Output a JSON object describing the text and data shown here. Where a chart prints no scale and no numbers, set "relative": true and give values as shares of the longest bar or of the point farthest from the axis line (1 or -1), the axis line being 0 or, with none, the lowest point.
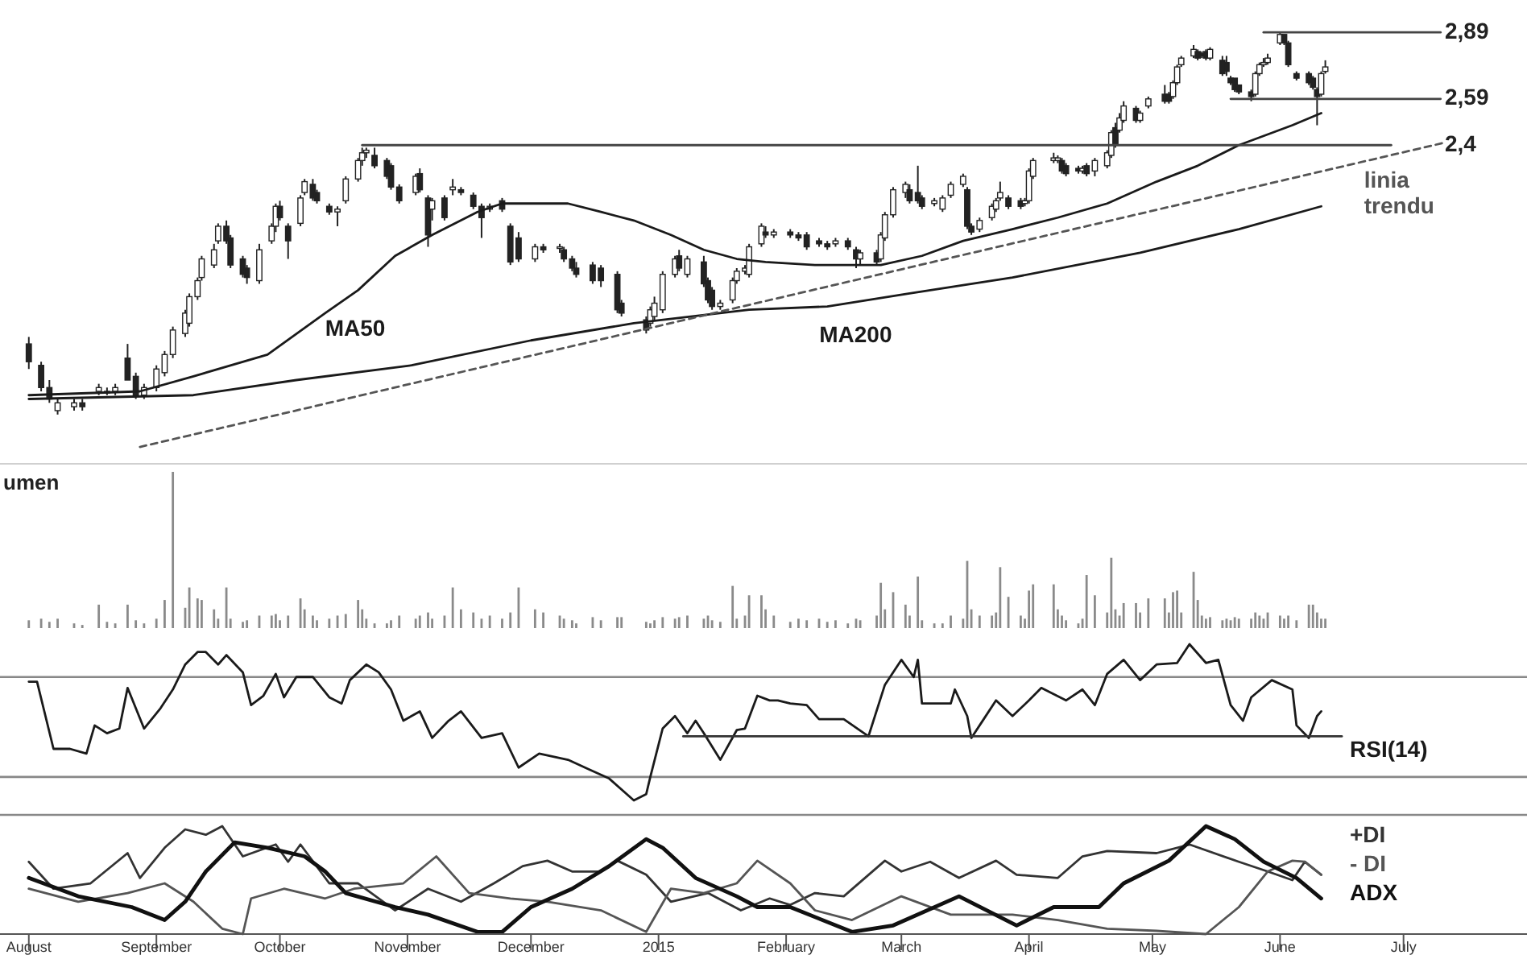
{
  "chart_data": [
    {
      "type": "candlestick",
      "log": true,
      "ylim": [
        1.42,
        3.0
      ],
      "xlim": [
        "2014-07-25",
        "2015-07-31"
      ],
      "yticks": [
        {
          "value": 2.89,
          "label": "2,89"
        },
        {
          "value": 2.59,
          "label": "2,59"
        },
        {
          "value": 2.4,
          "label": "2,4"
        }
      ],
      "tick_labels": "y",
      "x": [
        "2014-08-01",
        "2014-08-04",
        "2014-08-06",
        "2014-08-08",
        "2014-08-12",
        "2014-08-14",
        "2014-08-18",
        "2014-08-20",
        "2014-08-22",
        "2014-08-25",
        "2014-08-27",
        "2014-08-29",
        "2014-09-01",
        "2014-09-03",
        "2014-09-05",
        "2014-09-08",
        "2014-09-09",
        "2014-09-11",
        "2014-09-12",
        "2014-09-15",
        "2014-09-16",
        "2014-09-18",
        "2014-09-19",
        "2014-09-22",
        "2014-09-23",
        "2014-09-26",
        "2014-09-29",
        "2014-09-30",
        "2014-10-01",
        "2014-10-03",
        "2014-10-06",
        "2014-10-07",
        "2014-10-09",
        "2014-10-10",
        "2014-10-13",
        "2014-10-15",
        "2014-10-17",
        "2014-10-20",
        "2014-10-21",
        "2014-10-22",
        "2014-10-24",
        "2014-10-27",
        "2014-10-28",
        "2014-10-30",
        "2014-11-03",
        "2014-11-04",
        "2014-11-06",
        "2014-11-07",
        "2014-11-10",
        "2014-11-12",
        "2014-11-14",
        "2014-11-17",
        "2014-11-19",
        "2014-11-21",
        "2014-11-24",
        "2014-11-26",
        "2014-11-28",
        "2014-12-02",
        "2014-12-04",
        "2014-12-08",
        "2014-12-09",
        "2014-12-11",
        "2014-12-12",
        "2014-12-16",
        "2014-12-18",
        "2014-12-22",
        "2014-12-23",
        "2014-12-29",
        "2014-12-30",
        "2014-12-31",
        "2015-01-02",
        "2015-01-05",
        "2015-01-06",
        "2015-01-08",
        "2015-01-12",
        "2015-01-13",
        "2015-01-14",
        "2015-01-16",
        "2015-01-19",
        "2015-01-20",
        "2015-01-22",
        "2015-01-23",
        "2015-01-26",
        "2015-01-27",
        "2015-01-29",
        "2015-02-02",
        "2015-02-04",
        "2015-02-06",
        "2015-02-09",
        "2015-02-11",
        "2015-02-13",
        "2015-02-16",
        "2015-02-18",
        "2015-02-19",
        "2015-02-23",
        "2015-02-24",
        "2015-02-25",
        "2015-02-27",
        "2015-03-02",
        "2015-03-03",
        "2015-03-05",
        "2015-03-06",
        "2015-03-09",
        "2015-03-11",
        "2015-03-13",
        "2015-03-16",
        "2015-03-17",
        "2015-03-18",
        "2015-03-20",
        "2015-03-23",
        "2015-03-24",
        "2015-03-25",
        "2015-03-27",
        "2015-03-30",
        "2015-03-31",
        "2015-04-01",
        "2015-04-02",
        "2015-04-07",
        "2015-04-08",
        "2015-04-09",
        "2015-04-10",
        "2015-04-13",
        "2015-04-14",
        "2015-04-15",
        "2015-04-17",
        "2015-04-20",
        "2015-04-21",
        "2015-04-22",
        "2015-04-23",
        "2015-04-24",
        "2015-04-27",
        "2015-04-28",
        "2015-04-30",
        "2015-05-04",
        "2015-05-05",
        "2015-05-06",
        "2015-05-07",
        "2015-05-08",
        "2015-05-11",
        "2015-05-12",
        "2015-05-13",
        "2015-05-14",
        "2015-05-15",
        "2015-05-18",
        "2015-05-19",
        "2015-05-20",
        "2015-05-21",
        "2015-05-22",
        "2015-05-25",
        "2015-05-26",
        "2015-05-27",
        "2015-05-28",
        "2015-05-29",
        "2015-06-01",
        "2015-06-02",
        "2015-06-03",
        "2015-06-05",
        "2015-06-08",
        "2015-06-09",
        "2015-06-10",
        "2015-06-11",
        "2015-06-12"
      ],
      "ohlc": [
        [
          1.73,
          1.75,
          1.66,
          1.68
        ],
        [
          1.67,
          1.68,
          1.6,
          1.61
        ],
        [
          1.61,
          1.63,
          1.57,
          1.58
        ],
        [
          1.55,
          1.58,
          1.54,
          1.57
        ],
        [
          1.56,
          1.58,
          1.55,
          1.57
        ],
        [
          1.57,
          1.58,
          1.55,
          1.56
        ],
        [
          1.6,
          1.62,
          1.59,
          1.61
        ],
        [
          1.6,
          1.61,
          1.59,
          1.6
        ],
        [
          1.6,
          1.62,
          1.59,
          1.61
        ],
        [
          1.69,
          1.73,
          1.63,
          1.63
        ],
        [
          1.64,
          1.65,
          1.58,
          1.59
        ],
        [
          1.59,
          1.62,
          1.58,
          1.61
        ],
        [
          1.61,
          1.67,
          1.6,
          1.66
        ],
        [
          1.65,
          1.71,
          1.64,
          1.7
        ],
        [
          1.7,
          1.78,
          1.69,
          1.77
        ],
        [
          1.76,
          1.83,
          1.75,
          1.82
        ],
        [
          1.79,
          1.88,
          1.78,
          1.87
        ],
        [
          1.87,
          1.93,
          1.86,
          1.92
        ],
        [
          1.93,
          2.0,
          1.92,
          1.99
        ],
        [
          1.97,
          2.04,
          1.96,
          2.02
        ],
        [
          2.05,
          2.11,
          2.04,
          2.1
        ],
        [
          2.1,
          2.12,
          2.04,
          2.05
        ],
        [
          2.06,
          2.07,
          1.96,
          1.97
        ],
        [
          1.99,
          2.0,
          1.93,
          1.94
        ],
        [
          1.96,
          1.97,
          1.91,
          1.93
        ],
        [
          1.92,
          2.04,
          1.91,
          2.02
        ],
        [
          2.05,
          2.11,
          2.04,
          2.1
        ],
        [
          2.1,
          2.18,
          2.08,
          2.17
        ],
        [
          2.17,
          2.19,
          2.12,
          2.13
        ],
        [
          2.1,
          2.11,
          1.99,
          2.05
        ],
        [
          2.11,
          2.21,
          2.1,
          2.2
        ],
        [
          2.22,
          2.27,
          2.21,
          2.26
        ],
        [
          2.25,
          2.27,
          2.19,
          2.2
        ],
        [
          2.22,
          2.23,
          2.18,
          2.19
        ],
        [
          2.17,
          2.18,
          2.14,
          2.15
        ],
        [
          2.15,
          2.17,
          2.1,
          2.16
        ],
        [
          2.19,
          2.28,
          2.18,
          2.27
        ],
        [
          2.27,
          2.35,
          2.26,
          2.34
        ],
        [
          2.34,
          2.39,
          2.32,
          2.37
        ],
        [
          2.37,
          2.39,
          2.35,
          2.38
        ],
        [
          2.36,
          2.39,
          2.31,
          2.32
        ],
        [
          2.34,
          2.35,
          2.27,
          2.28
        ],
        [
          2.32,
          2.33,
          2.23,
          2.24
        ],
        [
          2.24,
          2.25,
          2.18,
          2.19
        ],
        [
          2.22,
          2.29,
          2.21,
          2.28
        ],
        [
          2.29,
          2.31,
          2.22,
          2.23
        ],
        [
          2.2,
          2.21,
          2.03,
          2.07
        ],
        [
          2.16,
          2.2,
          2.12,
          2.19
        ],
        [
          2.2,
          2.21,
          2.12,
          2.13
        ],
        [
          2.23,
          2.27,
          2.21,
          2.24
        ],
        [
          2.23,
          2.24,
          2.21,
          2.22
        ],
        [
          2.21,
          2.22,
          2.16,
          2.17
        ],
        [
          2.17,
          2.18,
          2.06,
          2.13
        ],
        [
          2.16,
          2.18,
          2.15,
          2.17
        ],
        [
          2.19,
          2.2,
          2.15,
          2.16
        ],
        [
          2.1,
          2.11,
          1.97,
          1.98
        ],
        [
          2.06,
          2.08,
          1.98,
          1.99
        ],
        [
          1.99,
          2.04,
          1.98,
          2.03
        ],
        [
          2.03,
          2.04,
          2.01,
          2.02
        ],
        [
          2.03,
          2.04,
          2.01,
          2.03
        ],
        [
          2.02,
          2.03,
          1.98,
          1.99
        ],
        [
          1.99,
          2.0,
          1.95,
          1.96
        ],
        [
          1.96,
          1.98,
          1.93,
          1.94
        ],
        [
          1.97,
          1.98,
          1.91,
          1.92
        ],
        [
          1.96,
          1.97,
          1.9,
          1.92
        ],
        [
          1.94,
          1.95,
          1.82,
          1.83
        ],
        [
          1.85,
          1.86,
          1.81,
          1.82
        ],
        [
          1.8,
          1.81,
          1.76,
          1.77
        ],
        [
          1.79,
          1.84,
          1.78,
          1.83
        ],
        [
          1.81,
          1.87,
          1.8,
          1.85
        ],
        [
          1.83,
          1.95,
          1.82,
          1.94
        ],
        [
          1.94,
          2.0,
          1.93,
          1.99
        ],
        [
          2.0,
          2.02,
          1.95,
          1.96
        ],
        [
          1.94,
          2.0,
          1.93,
          1.99
        ],
        [
          1.98,
          2.0,
          1.9,
          1.91
        ],
        [
          1.92,
          1.93,
          1.85,
          1.86
        ],
        [
          1.89,
          1.9,
          1.83,
          1.84
        ],
        [
          1.84,
          1.86,
          1.83,
          1.85
        ],
        [
          1.86,
          1.93,
          1.85,
          1.92
        ],
        [
          1.92,
          1.96,
          1.91,
          1.95
        ],
        [
          1.95,
          1.97,
          1.94,
          1.96
        ],
        [
          1.94,
          2.04,
          1.93,
          2.03
        ],
        [
          2.04,
          2.11,
          2.03,
          2.1
        ],
        [
          2.08,
          2.1,
          2.06,
          2.07
        ],
        [
          2.07,
          2.09,
          2.06,
          2.08
        ],
        [
          2.08,
          2.09,
          2.06,
          2.07
        ],
        [
          2.07,
          2.08,
          2.05,
          2.06
        ],
        [
          2.07,
          2.08,
          2.02,
          2.03
        ],
        [
          2.05,
          2.06,
          2.03,
          2.04
        ],
        [
          2.04,
          2.05,
          2.02,
          2.03
        ],
        [
          2.04,
          2.06,
          2.03,
          2.05
        ],
        [
          2.05,
          2.06,
          2.02,
          2.03
        ],
        [
          2.02,
          2.03,
          1.96,
          1.99
        ],
        [
          1.99,
          2.02,
          1.97,
          2.01
        ],
        [
          2.01,
          2.02,
          1.97,
          1.98
        ],
        [
          1.99,
          2.08,
          1.98,
          2.07
        ],
        [
          2.06,
          2.15,
          2.05,
          2.14
        ],
        [
          2.14,
          2.24,
          2.13,
          2.23
        ],
        [
          2.22,
          2.26,
          2.2,
          2.25
        ],
        [
          2.23,
          2.25,
          2.18,
          2.19
        ],
        [
          2.22,
          2.32,
          2.18,
          2.19
        ],
        [
          2.2,
          2.21,
          2.16,
          2.17
        ],
        [
          2.18,
          2.2,
          2.17,
          2.19
        ],
        [
          2.16,
          2.21,
          2.15,
          2.2
        ],
        [
          2.21,
          2.26,
          2.2,
          2.25
        ],
        [
          2.25,
          2.29,
          2.24,
          2.28
        ],
        [
          2.23,
          2.24,
          2.09,
          2.1
        ],
        [
          2.1,
          2.11,
          2.07,
          2.08
        ],
        [
          2.09,
          2.13,
          2.08,
          2.12
        ],
        [
          2.13,
          2.18,
          2.12,
          2.17
        ],
        [
          2.16,
          2.2,
          2.15,
          2.19
        ],
        [
          2.2,
          2.26,
          2.19,
          2.22
        ],
        [
          2.2,
          2.21,
          2.16,
          2.17
        ],
        [
          2.19,
          2.2,
          2.16,
          2.17
        ],
        [
          2.18,
          2.2,
          2.17,
          2.19
        ],
        [
          2.19,
          2.31,
          2.18,
          2.3
        ],
        [
          2.28,
          2.35,
          2.27,
          2.34
        ],
        [
          2.34,
          2.37,
          2.33,
          2.35
        ],
        [
          2.34,
          2.36,
          2.33,
          2.35
        ],
        [
          2.34,
          2.35,
          2.29,
          2.3
        ],
        [
          2.32,
          2.33,
          2.28,
          2.29
        ],
        [
          2.31,
          2.32,
          2.29,
          2.3
        ],
        [
          2.3,
          2.32,
          2.29,
          2.31
        ],
        [
          2.32,
          2.33,
          2.28,
          2.29
        ],
        [
          2.3,
          2.35,
          2.28,
          2.34
        ],
        [
          2.32,
          2.38,
          2.31,
          2.37
        ],
        [
          2.36,
          2.46,
          2.35,
          2.45
        ],
        [
          2.47,
          2.49,
          2.39,
          2.4
        ],
        [
          2.46,
          2.53,
          2.45,
          2.51
        ],
        [
          2.5,
          2.58,
          2.49,
          2.56
        ],
        [
          2.55,
          2.56,
          2.49,
          2.5
        ],
        [
          2.5,
          2.54,
          2.49,
          2.53
        ],
        [
          2.56,
          2.6,
          2.55,
          2.59
        ],
        [
          2.61,
          2.65,
          2.57,
          2.58
        ],
        [
          2.61,
          2.62,
          2.57,
          2.58
        ],
        [
          2.6,
          2.67,
          2.59,
          2.66
        ],
        [
          2.66,
          2.74,
          2.65,
          2.73
        ],
        [
          2.74,
          2.78,
          2.73,
          2.77
        ],
        [
          2.78,
          2.83,
          2.77,
          2.81
        ],
        [
          2.8,
          2.81,
          2.76,
          2.77
        ],
        [
          2.79,
          2.8,
          2.77,
          2.78
        ],
        [
          2.8,
          2.81,
          2.76,
          2.77
        ],
        [
          2.77,
          2.82,
          2.76,
          2.81
        ],
        [
          2.76,
          2.78,
          2.69,
          2.7
        ],
        [
          2.75,
          2.78,
          2.69,
          2.71
        ],
        [
          2.68,
          2.69,
          2.65,
          2.66
        ],
        [
          2.68,
          2.68,
          2.62,
          2.63
        ],
        [
          2.65,
          2.65,
          2.61,
          2.62
        ],
        [
          2.62,
          2.63,
          2.58,
          2.6
        ],
        [
          2.61,
          2.71,
          2.6,
          2.7
        ],
        [
          2.7,
          2.75,
          2.69,
          2.74
        ],
        [
          2.74,
          2.77,
          2.73,
          2.75
        ],
        [
          2.75,
          2.79,
          2.74,
          2.77
        ],
        [
          2.84,
          2.89,
          2.83,
          2.88
        ],
        [
          2.88,
          2.88,
          2.83,
          2.84
        ],
        [
          2.84,
          2.85,
          2.73,
          2.74
        ],
        [
          2.7,
          2.71,
          2.67,
          2.68
        ],
        [
          2.7,
          2.71,
          2.65,
          2.66
        ],
        [
          2.68,
          2.69,
          2.63,
          2.64
        ],
        [
          2.63,
          2.64,
          2.48,
          2.6
        ],
        [
          2.61,
          2.71,
          2.6,
          2.7
        ],
        [
          2.71,
          2.76,
          2.7,
          2.73
        ]
      ],
      "series": [
        {
          "name": "MA50",
          "type": "line",
          "color": "#1a1a1a",
          "x": [
            "2014-08-01",
            "2014-08-28",
            "2014-09-10",
            "2014-09-28",
            "2014-10-12",
            "2014-10-20",
            "2014-10-29",
            "2014-11-07",
            "2014-11-18",
            "2014-11-24",
            "2014-12-10",
            "2014-12-18",
            "2014-12-26",
            "2015-01-04",
            "2015-01-12",
            "2015-01-20",
            "2015-01-27",
            "2015-02-08",
            "2015-02-24",
            "2015-03-06",
            "2015-03-16",
            "2015-03-28",
            "2015-04-08",
            "2015-04-20",
            "2015-05-02",
            "2015-05-12",
            "2015-05-22",
            "2015-06-04",
            "2015-06-11"
          ],
          "values": [
            1.59,
            1.6,
            1.64,
            1.7,
            1.82,
            1.89,
            2.0,
            2.07,
            2.15,
            2.18,
            2.18,
            2.15,
            2.12,
            2.07,
            2.02,
            1.99,
            1.98,
            1.97,
            1.97,
            2.0,
            2.05,
            2.09,
            2.13,
            2.18,
            2.26,
            2.32,
            2.4,
            2.48,
            2.53
          ]
        },
        {
          "name": "MA200",
          "type": "line",
          "color": "#1a1a1a",
          "x": [
            "2014-08-01",
            "2014-09-10",
            "2014-10-05",
            "2014-11-02",
            "2014-12-01",
            "2014-12-26",
            "2015-01-23",
            "2015-02-11",
            "2015-03-03",
            "2015-03-28",
            "2015-04-28",
            "2015-05-22",
            "2015-06-11"
          ],
          "values": [
            1.58,
            1.59,
            1.63,
            1.67,
            1.74,
            1.79,
            1.83,
            1.84,
            1.88,
            1.93,
            2.01,
            2.09,
            2.17
          ]
        },
        {
          "name": "linia trendu",
          "type": "line",
          "line_style": "dashed",
          "color": "#555555",
          "x": [
            "2014-08-28",
            "2015-07-11"
          ],
          "values": [
            1.46,
            2.41
          ]
        },
        {
          "type": "line",
          "color": "#444444",
          "x": [
            "2015-05-28",
            "2015-07-10"
          ],
          "values": [
            2.89,
            2.89
          ]
        },
        {
          "type": "line",
          "color": "#444444",
          "x": [
            "2015-05-20",
            "2015-07-10"
          ],
          "values": [
            2.59,
            2.59
          ]
        },
        {
          "type": "line",
          "color": "#444444",
          "x": [
            "2014-10-21",
            "2015-06-28"
          ],
          "values": [
            2.4,
            2.4
          ]
        }
      ]
    },
    {
      "type": "bar",
      "title": "umen",
      "relative": true,
      "color": "#8a8a8a",
      "xlim": [
        "2014-07-25",
        "2015-07-31"
      ],
      "tick_labels": false,
      "x": [
        "2014-08-01",
        "2014-08-04",
        "2014-08-06",
        "2014-08-08",
        "2014-08-12",
        "2014-08-14",
        "2014-08-18",
        "2014-08-20",
        "2014-08-22",
        "2014-08-25",
        "2014-08-27",
        "2014-08-29",
        "2014-09-01",
        "2014-09-03",
        "2014-09-05",
        "2014-09-08",
        "2014-09-09",
        "2014-09-11",
        "2014-09-12",
        "2014-09-15",
        "2014-09-16",
        "2014-09-18",
        "2014-09-19",
        "2014-09-22",
        "2014-09-23",
        "2014-09-26",
        "2014-09-29",
        "2014-09-30",
        "2014-10-01",
        "2014-10-03",
        "2014-10-06",
        "2014-10-07",
        "2014-10-09",
        "2014-10-10",
        "2014-10-13",
        "2014-10-15",
        "2014-10-17",
        "2014-10-20",
        "2014-10-21",
        "2014-10-22",
        "2014-10-24",
        "2014-10-27",
        "2014-10-28",
        "2014-10-30",
        "2014-11-03",
        "2014-11-04",
        "2014-11-06",
        "2014-11-07",
        "2014-11-10",
        "2014-11-12",
        "2014-11-14",
        "2014-11-17",
        "2014-11-19",
        "2014-11-21",
        "2014-11-24",
        "2014-11-26",
        "2014-11-28",
        "2014-12-02",
        "2014-12-04",
        "2014-12-08",
        "2014-12-09",
        "2014-12-11",
        "2014-12-12",
        "2014-12-16",
        "2014-12-18",
        "2014-12-22",
        "2014-12-23",
        "2014-12-29",
        "2014-12-30",
        "2014-12-31",
        "2015-01-02",
        "2015-01-05",
        "2015-01-06",
        "2015-01-08",
        "2015-01-12",
        "2015-01-13",
        "2015-01-14",
        "2015-01-16",
        "2015-01-19",
        "2015-01-20",
        "2015-01-22",
        "2015-01-23",
        "2015-01-26",
        "2015-01-27",
        "2015-01-29",
        "2015-02-02",
        "2015-02-04",
        "2015-02-06",
        "2015-02-09",
        "2015-02-11",
        "2015-02-13",
        "2015-02-16",
        "2015-02-18",
        "2015-02-19",
        "2015-02-23",
        "2015-02-24",
        "2015-02-25",
        "2015-02-27",
        "2015-03-02",
        "2015-03-03",
        "2015-03-05",
        "2015-03-06",
        "2015-03-09",
        "2015-03-11",
        "2015-03-13",
        "2015-03-16",
        "2015-03-17",
        "2015-03-18",
        "2015-03-20",
        "2015-03-23",
        "2015-03-24",
        "2015-03-25",
        "2015-03-27",
        "2015-03-30",
        "2015-03-31",
        "2015-04-01",
        "2015-04-02",
        "2015-04-07",
        "2015-04-08",
        "2015-04-09",
        "2015-04-10",
        "2015-04-13",
        "2015-04-14",
        "2015-04-15",
        "2015-04-17",
        "2015-04-20",
        "2015-04-21",
        "2015-04-22",
        "2015-04-23",
        "2015-04-24",
        "2015-04-27",
        "2015-04-28",
        "2015-04-30",
        "2015-05-04",
        "2015-05-05",
        "2015-05-06",
        "2015-05-07",
        "2015-05-08",
        "2015-05-11",
        "2015-05-12",
        "2015-05-13",
        "2015-05-14",
        "2015-05-15",
        "2015-05-18",
        "2015-05-19",
        "2015-05-20",
        "2015-05-21",
        "2015-05-22",
        "2015-05-25",
        "2015-05-26",
        "2015-05-27",
        "2015-05-28",
        "2015-05-29",
        "2015-06-01",
        "2015-06-02",
        "2015-06-03",
        "2015-06-05",
        "2015-06-08",
        "2015-06-09",
        "2015-06-10",
        "2015-06-11",
        "2015-06-12"
      ],
      "values": [
        0.05,
        0.06,
        0.04,
        0.06,
        0.03,
        0.02,
        0.15,
        0.04,
        0.03,
        0.15,
        0.05,
        0.03,
        0.06,
        0.18,
        1,
        0.13,
        0.26,
        0.19,
        0.18,
        0.12,
        0.06,
        0.26,
        0.06,
        0.04,
        0.05,
        0.08,
        0.08,
        0.09,
        0.05,
        0.08,
        0.19,
        0.12,
        0.08,
        0.05,
        0.06,
        0.08,
        0.09,
        0.18,
        0.12,
        0.06,
        0.03,
        0.03,
        0.05,
        0.08,
        0.06,
        0.08,
        0.1,
        0.06,
        0.08,
        0.26,
        0.12,
        0.1,
        0.06,
        0.08,
        0.06,
        0.1,
        0.26,
        0.12,
        0.1,
        0.08,
        0.06,
        0.05,
        0.03,
        0.07,
        0.05,
        0.07,
        0.07,
        0.04,
        0.03,
        0.05,
        0.07,
        0.06,
        0.07,
        0.08,
        0.06,
        0.08,
        0.05,
        0.04,
        0.27,
        0.06,
        0.08,
        0.21,
        0.21,
        0.12,
        0.08,
        0.04,
        0.06,
        0.05,
        0.06,
        0.04,
        0.05,
        0.03,
        0.06,
        0.05,
        0.08,
        0.29,
        0.12,
        0.23,
        0.15,
        0.08,
        0.33,
        0.05,
        0.03,
        0.03,
        0.08,
        0.06,
        0.43,
        0.12,
        0.08,
        0.08,
        0.1,
        0.39,
        0.2,
        0.08,
        0.06,
        0.24,
        0.28,
        0.28,
        0.12,
        0.08,
        0.05,
        0.03,
        0.06,
        0.34,
        0.21,
        0.1,
        0.45,
        0.12,
        0.08,
        0.16,
        0.16,
        0.1,
        0.19,
        0.19,
        0.1,
        0.23,
        0.24,
        0.1,
        0.36,
        0.18,
        0.08,
        0.06,
        0.07,
        0.05,
        0.06,
        0.05,
        0.07,
        0.06,
        0.06,
        0.1,
        0.08,
        0.06,
        0.1,
        0.08,
        0.06,
        0.08,
        0.05,
        0.15,
        0.15,
        0.1,
        0.06,
        0.06
      ]
    },
    {
      "type": "line",
      "relative": true,
      "xlim": [
        "2014-07-25",
        "2015-07-31"
      ],
      "tick_labels": false,
      "series": [
        {
          "name": "RSI(14)",
          "color": "#1a1a1a",
          "x": [
            "2014-08-01",
            "2014-08-03",
            "2014-08-07",
            "2014-08-11",
            "2014-08-15",
            "2014-08-17",
            "2014-08-20",
            "2014-08-23",
            "2014-08-25",
            "2014-08-29",
            "2014-09-02",
            "2014-09-05",
            "2014-09-08",
            "2014-09-11",
            "2014-09-13",
            "2014-09-16",
            "2014-09-18",
            "2014-09-22",
            "2014-09-24",
            "2014-09-27",
            "2014-09-30",
            "2014-10-02",
            "2014-10-05",
            "2014-10-09",
            "2014-10-13",
            "2014-10-16",
            "2014-10-18",
            "2014-10-22",
            "2014-10-25",
            "2014-10-28",
            "2014-10-31",
            "2014-11-04",
            "2014-11-07",
            "2014-11-11",
            "2014-11-14",
            "2014-11-19",
            "2014-11-24",
            "2014-11-28",
            "2014-12-03",
            "2014-12-10",
            "2014-12-15",
            "2014-12-20",
            "2014-12-26",
            "2014-12-29",
            "2014-12-30",
            "2015-01-02",
            "2015-01-05",
            "2015-01-08",
            "2015-01-10",
            "2015-01-12",
            "2015-01-16",
            "2015-01-20",
            "2015-01-22",
            "2015-01-25",
            "2015-01-28",
            "2015-01-30",
            "2015-02-02",
            "2015-02-06",
            "2015-02-09",
            "2015-02-15",
            "2015-02-21",
            "2015-02-25",
            "2015-03-01",
            "2015-03-04",
            "2015-03-05",
            "2015-03-06",
            "2015-03-13",
            "2015-03-14",
            "2015-03-17",
            "2015-03-18",
            "2015-03-21",
            "2015-03-24",
            "2015-03-28",
            "2015-04-01",
            "2015-04-04",
            "2015-04-10",
            "2015-04-14",
            "2015-04-17",
            "2015-04-20",
            "2015-04-24",
            "2015-04-28",
            "2015-05-02",
            "2015-05-07",
            "2015-05-10",
            "2015-05-14",
            "2015-05-17",
            "2015-05-20",
            "2015-05-23",
            "2015-05-25",
            "2015-05-30",
            "2015-06-04",
            "2015-06-05",
            "2015-06-08",
            "2015-06-10",
            "2015-06-11"
          ],
          "values": [
            0.76,
            0.76,
            0.33,
            0.33,
            0.3,
            0.48,
            0.43,
            0.46,
            0.72,
            0.46,
            0.59,
            0.71,
            0.87,
            0.95,
            0.95,
            0.87,
            0.93,
            0.82,
            0.61,
            0.67,
            0.81,
            0.66,
            0.79,
            0.79,
            0.66,
            0.62,
            0.77,
            0.87,
            0.82,
            0.71,
            0.51,
            0.57,
            0.4,
            0.51,
            0.57,
            0.4,
            0.43,
            0.21,
            0.3,
            0.26,
            0.2,
            0.14,
            0,
            0.04,
            0.15,
            0.46,
            0.54,
            0.43,
            0.51,
            0.43,
            0.26,
            0.45,
            0.46,
            0.67,
            0.64,
            0.64,
            0.62,
            0.61,
            0.52,
            0.52,
            0.41,
            0.74,
            0.9,
            0.79,
            0.9,
            0.62,
            0.62,
            0.71,
            0.54,
            0.4,
            0.52,
            0.64,
            0.54,
            0.64,
            0.72,
            0.64,
            0.71,
            0.61,
            0.81,
            0.9,
            0.77,
            0.87,
            0.88,
            1,
            0.88,
            0.9,
            0.61,
            0.51,
            0.66,
            0.77,
            0.71,
            0.48,
            0.4,
            0.54,
            0.57
          ]
        },
        {
          "type": "line",
          "color": "#333333",
          "x": [
            "2015-01-07",
            "2015-06-16"
          ],
          "values": [
            0.41,
            0.41
          ]
        }
      ],
      "ref_lines": [
        {
          "axis": "y",
          "value": 0.79,
          "color": "#888888"
        },
        {
          "axis": "y",
          "value": 0.15,
          "color": "#888888"
        }
      ]
    },
    {
      "type": "line",
      "relative": true,
      "xlim": [
        "2014-07-25",
        "2015-07-31"
      ],
      "tick_labels": "x",
      "xticks": [
        {
          "value": "2014-08-01",
          "label": "August"
        },
        {
          "value": "2014-09-01",
          "label": "September"
        },
        {
          "value": "2014-10-01",
          "label": "October"
        },
        {
          "value": "2014-11-01",
          "label": "November"
        },
        {
          "value": "2014-12-01",
          "label": "December"
        },
        {
          "value": "2015-01-01",
          "label": "2015"
        },
        {
          "value": "2015-02-01",
          "label": "February"
        },
        {
          "value": "2015-03-01",
          "label": "March"
        },
        {
          "value": "2015-04-01",
          "label": "April"
        },
        {
          "value": "2015-05-01",
          "label": "May"
        },
        {
          "value": "2015-06-01",
          "label": "June"
        },
        {
          "value": "2015-07-01",
          "label": "July"
        }
      ],
      "series": [
        {
          "name": "+DI",
          "color": "#333333",
          "x": [
            "2014-08-01",
            "2014-08-07",
            "2014-08-16",
            "2014-08-25",
            "2014-08-28",
            "2014-09-03",
            "2014-09-08",
            "2014-09-13",
            "2014-09-17",
            "2014-09-22",
            "2014-09-30",
            "2014-10-03",
            "2014-10-06",
            "2014-10-13",
            "2014-10-20",
            "2014-10-29",
            "2014-11-06",
            "2014-11-14",
            "2014-11-22",
            "2014-11-29",
            "2014-12-05",
            "2014-12-11",
            "2014-12-18",
            "2014-12-22",
            "2014-12-29",
            "2015-01-04",
            "2015-01-13",
            "2015-01-21",
            "2015-01-28",
            "2015-02-02",
            "2015-02-08",
            "2015-02-15",
            "2015-02-25",
            "2015-03-01",
            "2015-03-08",
            "2015-03-15",
            "2015-03-24",
            "2015-03-29",
            "2015-04-08",
            "2015-04-14",
            "2015-04-20",
            "2015-05-02",
            "2015-05-10",
            "2015-05-22",
            "2015-05-29",
            "2015-06-04",
            "2015-06-07",
            "2015-06-11"
          ],
          "values": [
            0.67,
            0.42,
            0.47,
            0.75,
            0.52,
            0.8,
            0.97,
            0.92,
            1,
            0.72,
            0.83,
            0.67,
            0.83,
            0.47,
            0.47,
            0.22,
            0.42,
            0.3,
            0.47,
            0.63,
            0.68,
            0.58,
            0.58,
            0.68,
            0.55,
            0.3,
            0.38,
            0.22,
            0.33,
            0.27,
            0.38,
            0.35,
            0.68,
            0.58,
            0.67,
            0.52,
            0.68,
            0.55,
            0.52,
            0.72,
            0.77,
            0.75,
            0.83,
            0.67,
            0.58,
            0.5,
            0.67,
            0.55
          ]
        },
        {
          "name": "- DI",
          "color": "#555555",
          "x": [
            "2014-08-01",
            "2014-08-13",
            "2014-08-25",
            "2014-09-03",
            "2014-09-10",
            "2014-09-17",
            "2014-09-22",
            "2014-09-24",
            "2014-10-02",
            "2014-10-12",
            "2014-10-19",
            "2014-10-31",
            "2014-11-08",
            "2014-11-16",
            "2014-11-26",
            "2014-12-05",
            "2014-12-18",
            "2014-12-29",
            "2015-01-04",
            "2015-01-12",
            "2015-01-20",
            "2015-01-25",
            "2015-02-02",
            "2015-02-08",
            "2015-02-17",
            "2015-03-01",
            "2015-03-13",
            "2015-03-28",
            "2015-04-08",
            "2015-04-20",
            "2015-05-02",
            "2015-05-14",
            "2015-05-22",
            "2015-05-29",
            "2015-06-04",
            "2015-06-07",
            "2015-06-11"
          ],
          "values": [
            0.42,
            0.3,
            0.38,
            0.47,
            0.3,
            0.05,
            0,
            0.33,
            0.42,
            0.33,
            0.42,
            0.47,
            0.72,
            0.38,
            0.33,
            0.3,
            0.22,
            0.02,
            0.42,
            0.38,
            0.47,
            0.68,
            0.47,
            0.22,
            0.13,
            0.35,
            0.18,
            0.18,
            0.13,
            0.05,
            0.03,
            0,
            0.25,
            0.58,
            0.68,
            0.67,
            0.55
          ]
        },
        {
          "name": "ADX",
          "color": "#111111",
          "x": [
            "2014-08-01",
            "2014-08-13",
            "2014-08-26",
            "2014-09-03",
            "2014-09-08",
            "2014-09-13",
            "2014-09-20",
            "2014-09-28",
            "2014-10-07",
            "2014-10-12",
            "2014-10-17",
            "2014-10-29",
            "2014-11-06",
            "2014-11-18",
            "2014-11-24",
            "2014-12-01",
            "2014-12-11",
            "2014-12-20",
            "2014-12-29",
            "2015-01-02",
            "2015-01-10",
            "2015-01-20",
            "2015-01-25",
            "2015-02-02",
            "2015-02-17",
            "2015-02-27",
            "2015-03-15",
            "2015-03-29",
            "2015-04-07",
            "2015-04-18",
            "2015-04-24",
            "2015-05-05",
            "2015-05-14",
            "2015-05-21",
            "2015-05-28",
            "2015-06-05",
            "2015-06-11"
          ],
          "values": [
            0.52,
            0.35,
            0.25,
            0.13,
            0.3,
            0.58,
            0.85,
            0.8,
            0.72,
            0.58,
            0.38,
            0.25,
            0.18,
            0.02,
            0.02,
            0.25,
            0.42,
            0.63,
            0.88,
            0.8,
            0.52,
            0.35,
            0.25,
            0.25,
            0.02,
            0.08,
            0.35,
            0.08,
            0.25,
            0.25,
            0.47,
            0.68,
            1,
            0.88,
            0.67,
            0.52,
            0.33
          ]
        }
      ]
    }
  ]
}
